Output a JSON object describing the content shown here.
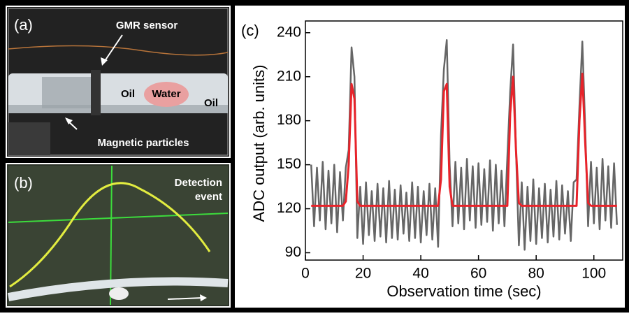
{
  "panels": {
    "a": {
      "label": "(a)",
      "sensor": "GMR sensor",
      "oil_left": "Oil",
      "water": "Water",
      "oil_right": "Oil",
      "particles": "Magnetic particles"
    },
    "b": {
      "label": "(b)",
      "event": [
        "Detection",
        "event"
      ]
    },
    "c": {
      "label": "(c)"
    }
  },
  "chart_data": {
    "type": "line",
    "xlabel": "Observation time (sec)",
    "ylabel": "ADC output (arb. units)",
    "xlim": [
      0,
      110
    ],
    "ylim": [
      85,
      248
    ],
    "xticks": [
      0,
      20,
      40,
      60,
      80,
      100
    ],
    "yticks": [
      90,
      120,
      150,
      180,
      210,
      240
    ],
    "x": [
      2,
      3,
      4,
      5,
      6,
      7,
      8,
      9,
      10,
      11,
      12,
      13,
      14,
      15,
      16,
      17,
      18,
      19,
      20,
      21,
      22,
      23,
      24,
      25,
      26,
      27,
      28,
      29,
      30,
      31,
      32,
      33,
      34,
      35,
      36,
      37,
      38,
      39,
      40,
      41,
      42,
      43,
      44,
      45,
      46,
      47,
      48,
      49,
      50,
      51,
      52,
      53,
      54,
      55,
      56,
      57,
      58,
      59,
      60,
      61,
      62,
      63,
      64,
      65,
      66,
      67,
      68,
      69,
      70,
      71,
      72,
      73,
      74,
      75,
      76,
      77,
      78,
      79,
      80,
      81,
      82,
      83,
      84,
      85,
      86,
      87,
      88,
      89,
      90,
      91,
      92,
      93,
      94,
      95,
      96,
      97,
      98,
      99,
      100,
      101,
      102,
      103,
      104,
      105,
      106,
      107,
      108
    ],
    "series": [
      {
        "color": "#666666",
        "values": [
          150,
          108,
          148,
          112,
          152,
          106,
          146,
          110,
          150,
          104,
          145,
          112,
          148,
          160,
          230,
          210,
          100,
          135,
          96,
          138,
          102,
          132,
          98,
          137,
          101,
          134,
          97,
          139,
          100,
          133,
          99,
          136,
          103,
          131,
          98,
          138,
          100,
          135,
          97,
          132,
          102,
          137,
          99,
          134,
          94,
          170,
          215,
          235,
          150,
          108,
          152,
          110,
          148,
          106,
          154,
          112,
          149,
          107,
          151,
          109,
          147,
          111,
          153,
          105,
          150,
          110,
          146,
          108,
          155,
          200,
          232,
          160,
          95,
          138,
          92,
          135,
          98,
          140,
          96,
          134,
          100,
          137,
          97,
          133,
          101,
          139,
          99,
          136,
          103,
          132,
          98,
          138,
          140,
          190,
          234,
          175,
          108,
          152,
          110,
          148,
          106,
          154,
          112,
          149,
          107,
          151,
          109
        ]
      },
      {
        "color": "#e8232a",
        "values": [
          122,
          122,
          122,
          122,
          122,
          122,
          122,
          122,
          122,
          122,
          122,
          122,
          125,
          150,
          205,
          195,
          125,
          122,
          122,
          122,
          122,
          122,
          122,
          122,
          122,
          122,
          122,
          122,
          122,
          122,
          122,
          122,
          122,
          122,
          122,
          122,
          122,
          122,
          122,
          122,
          122,
          122,
          122,
          122,
          122,
          140,
          200,
          205,
          135,
          122,
          122,
          122,
          122,
          122,
          122,
          122,
          122,
          122,
          122,
          122,
          122,
          122,
          122,
          122,
          122,
          122,
          122,
          122,
          122,
          185,
          210,
          160,
          124,
          122,
          122,
          122,
          122,
          122,
          122,
          122,
          122,
          122,
          122,
          122,
          122,
          122,
          122,
          122,
          122,
          122,
          122,
          122,
          122,
          180,
          212,
          165,
          124,
          122,
          122,
          122,
          122,
          122,
          122,
          122,
          122,
          122,
          122
        ]
      }
    ]
  }
}
